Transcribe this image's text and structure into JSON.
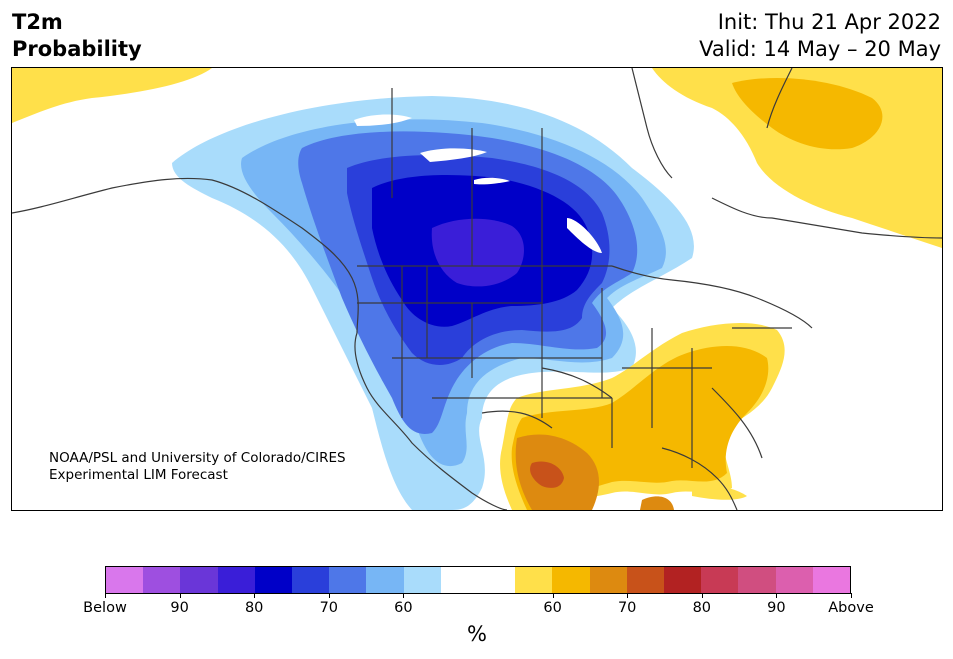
{
  "header": {
    "title_line1": "T2m",
    "title_line2": "Probability",
    "init": "Init: Thu 21 Apr 2022",
    "valid": "Valid: 14 May – 20 May"
  },
  "map": {
    "credit_line1": "NOAA/PSL and University of Colorado/CIRES",
    "credit_line2": "Experimental LIM Forecast",
    "colors": {
      "below_60": "#a9dcfb",
      "below_65": "#77b6f5",
      "below_70": "#4e77e8",
      "below_75": "#2a3fda",
      "below_80": "#0000c8",
      "below_85": "#3a1ed8",
      "above_60": "#ffe04a",
      "above_65": "#f5b800",
      "above_70": "#dd8a10",
      "above_75": "#c8521a",
      "lake": "#ffffff",
      "border": "#3a3a3a"
    }
  },
  "colorbar": {
    "segments": [
      "#d977ec",
      "#9e4fe0",
      "#6a36d8",
      "#3a1ed8",
      "#0000c8",
      "#2a3fda",
      "#4e77e8",
      "#77b6f5",
      "#a9dcfb",
      "#ffffff",
      "#ffffff",
      "#ffe04a",
      "#f5b800",
      "#dd8a10",
      "#c8521a",
      "#b22222",
      "#c83a55",
      "#d04e80",
      "#dc5fae",
      "#ea77e0"
    ],
    "tick_labels": [
      "Below",
      "90",
      "80",
      "70",
      "60",
      "60",
      "70",
      "80",
      "90",
      "Above"
    ],
    "unit": "%"
  }
}
